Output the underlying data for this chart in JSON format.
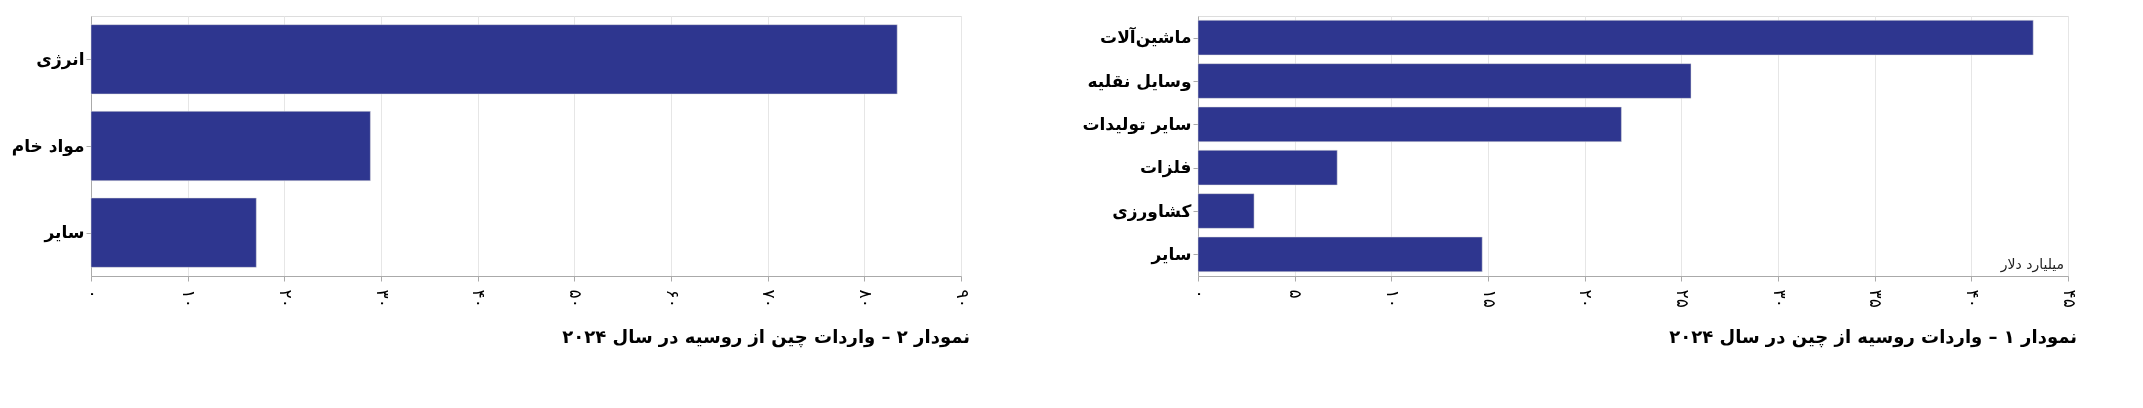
{
  "chart_data": [
    {
      "type": "bar",
      "orientation": "horizontal",
      "title": "نمودار ۱ – واردات روسیه از چین در سال ۲۰۲۴",
      "xlabel": "میلیارد دلار",
      "categories": [
        "ماشین‌آلات",
        "وسایل نقلیه",
        "سایر تولیدات",
        "فلزات",
        "کشاورزی",
        "سایر"
      ],
      "values": [
        43.2,
        25.5,
        21.9,
        7.2,
        2.9,
        14.7
      ],
      "color": "#2e368f",
      "xlim": [
        0,
        45
      ],
      "xticks": [
        {
          "value": 0,
          "label": "۰"
        },
        {
          "value": 5,
          "label": "۵"
        },
        {
          "value": 10,
          "label": "۱۰"
        },
        {
          "value": 15,
          "label": "۱۵"
        },
        {
          "value": 20,
          "label": "۲۰"
        },
        {
          "value": 25,
          "label": "۲۵"
        },
        {
          "value": 30,
          "label": "۳۰"
        },
        {
          "value": 35,
          "label": "۳۵"
        },
        {
          "value": 40,
          "label": "۴۰"
        },
        {
          "value": 45,
          "label": "۴۵"
        }
      ],
      "grid": "x"
    },
    {
      "type": "bar",
      "orientation": "horizontal",
      "title": "نمودار ۲ – واردات چین از روسیه در سال ۲۰۲۴",
      "categories": [
        "انرژی",
        "مواد خام",
        "سایر"
      ],
      "values": [
        83.4,
        28.9,
        17.1
      ],
      "color": "#2e368f",
      "xlim": [
        0,
        90
      ],
      "xticks": [
        {
          "value": 0,
          "label": "۰"
        },
        {
          "value": 10,
          "label": "۱۰"
        },
        {
          "value": 20,
          "label": "۲۰"
        },
        {
          "value": 30,
          "label": "۳۰"
        },
        {
          "value": 40,
          "label": "۴۰"
        },
        {
          "value": 50,
          "label": "۵۰"
        },
        {
          "value": 60,
          "label": "۶۰"
        },
        {
          "value": 70,
          "label": "۷۰"
        },
        {
          "value": 80,
          "label": "۸۰"
        },
        {
          "value": 90,
          "label": "۹۰"
        }
      ],
      "grid": "x"
    }
  ]
}
